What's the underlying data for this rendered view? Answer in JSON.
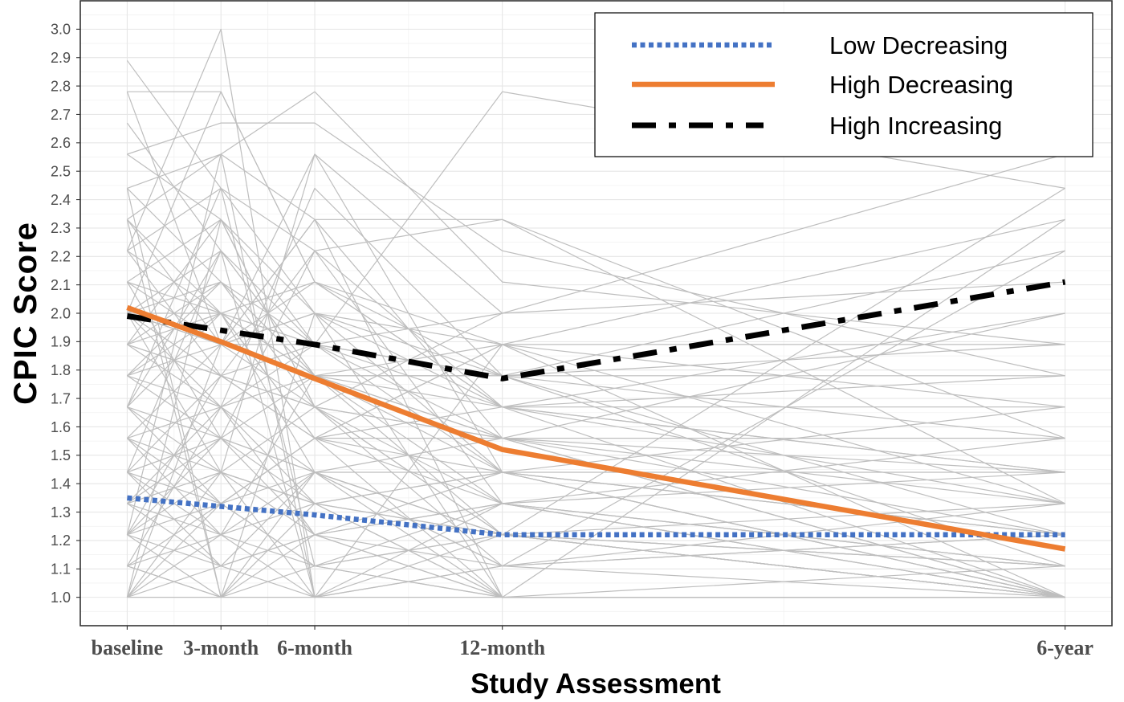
{
  "chart_data": {
    "type": "line",
    "xlabel": "Study Assessment",
    "ylabel": "CPIC Score",
    "x_ticks": [
      {
        "label": "baseline",
        "x": 0
      },
      {
        "label": "3-month",
        "x": 3
      },
      {
        "label": "6-month",
        "x": 6
      },
      {
        "label": "12-month",
        "x": 12
      },
      {
        "label": "6-year",
        "x": 30
      }
    ],
    "y_ticks": [
      "1.0",
      "1.1",
      "1.2",
      "1.3",
      "1.4",
      "1.5",
      "1.6",
      "1.7",
      "1.8",
      "1.9",
      "2.0",
      "2.1",
      "2.2",
      "2.3",
      "2.4",
      "2.5",
      "2.6",
      "2.7",
      "2.8",
      "2.9",
      "3.0"
    ],
    "xlim": [
      -1.5,
      31.5
    ],
    "ylim": [
      0.9,
      3.1
    ],
    "grid": true,
    "legend_position": "top-right",
    "x": [
      0,
      3,
      6,
      12,
      30
    ],
    "series": [
      {
        "name": "Low Decreasing",
        "color": "#4472C4",
        "values": [
          1.35,
          1.32,
          1.29,
          1.22,
          1.22
        ]
      },
      {
        "name": "High Decreasing",
        "color": "#ED7D31",
        "values": [
          2.02,
          1.9,
          1.77,
          1.52,
          1.17
        ]
      },
      {
        "name": "High Increasing",
        "color": "#000000",
        "values": [
          1.99,
          1.94,
          1.89,
          1.77,
          2.11
        ]
      }
    ],
    "individual_color": "#BEBEBE",
    "individuals": [
      [
        1.0,
        1.0,
        1.0,
        1.0,
        1.0
      ],
      [
        1.11,
        1.0,
        1.22,
        1.0,
        1.0
      ],
      [
        1.22,
        1.33,
        1.11,
        1.22,
        1.0
      ],
      [
        1.33,
        1.22,
        1.44,
        1.11,
        1.22
      ],
      [
        1.44,
        1.56,
        1.22,
        1.33,
        1.11
      ],
      [
        1.56,
        1.33,
        1.44,
        1.22,
        1.0
      ],
      [
        1.0,
        1.22,
        1.0,
        1.11,
        1.33
      ],
      [
        1.22,
        1.0,
        1.33,
        1.44,
        1.22
      ],
      [
        1.33,
        1.44,
        1.22,
        1.0,
        1.0
      ],
      [
        1.11,
        1.22,
        1.33,
        1.22,
        1.11
      ],
      [
        1.44,
        1.33,
        1.56,
        1.33,
        1.44
      ],
      [
        1.67,
        1.44,
        1.33,
        1.22,
        1.0
      ],
      [
        1.0,
        1.11,
        1.22,
        1.33,
        1.56
      ],
      [
        1.22,
        1.56,
        1.44,
        1.22,
        1.33
      ],
      [
        1.56,
        1.67,
        1.33,
        1.44,
        1.22
      ],
      [
        1.33,
        1.11,
        1.0,
        1.22,
        1.0
      ],
      [
        1.11,
        1.33,
        1.56,
        1.0,
        1.11
      ],
      [
        1.0,
        1.33,
        1.11,
        1.22,
        1.0
      ],
      [
        1.44,
        1.22,
        1.11,
        1.0,
        1.0
      ],
      [
        1.22,
        1.11,
        1.44,
        1.56,
        1.33
      ],
      [
        1.78,
        1.56,
        1.44,
        1.22,
        1.11
      ],
      [
        1.33,
        1.67,
        1.22,
        1.11,
        1.22
      ],
      [
        1.67,
        1.33,
        1.56,
        1.44,
        1.0
      ],
      [
        1.0,
        1.44,
        1.33,
        1.0,
        1.0
      ],
      [
        1.11,
        1.0,
        1.11,
        1.33,
        1.0
      ],
      [
        1.56,
        1.44,
        1.67,
        1.56,
        1.56
      ],
      [
        1.44,
        1.78,
        1.56,
        1.67,
        1.67
      ],
      [
        1.22,
        1.44,
        1.0,
        1.11,
        null
      ],
      [
        1.67,
        1.56,
        1.78,
        1.78,
        1.78
      ],
      [
        2.0,
        1.89,
        1.67,
        1.56,
        1.22
      ],
      [
        2.11,
        2.0,
        1.78,
        1.44,
        1.0
      ],
      [
        1.89,
        2.11,
        1.67,
        1.33,
        1.11
      ],
      [
        2.22,
        1.78,
        1.89,
        1.67,
        1.33
      ],
      [
        2.33,
        2.0,
        1.56,
        1.56,
        1.0
      ],
      [
        1.78,
        1.89,
        2.0,
        1.44,
        1.22
      ],
      [
        2.0,
        2.22,
        1.89,
        1.78,
        1.56
      ],
      [
        2.44,
        2.11,
        1.78,
        1.56,
        1.0
      ],
      [
        1.89,
        1.67,
        1.78,
        1.67,
        1.44
      ],
      [
        2.56,
        2.33,
        2.0,
        1.89,
        1.33
      ],
      [
        1.67,
        2.0,
        2.11,
        1.67,
        1.0
      ],
      [
        2.11,
        2.33,
        1.67,
        1.22,
        1.11
      ],
      [
        2.0,
        1.78,
        2.22,
        1.33,
        1.0
      ],
      [
        1.78,
        2.11,
        1.89,
        1.44,
        1.67
      ],
      [
        2.22,
        2.44,
        2.0,
        1.78,
        1.22
      ],
      [
        1.89,
        1.78,
        1.56,
        1.89,
        1.89
      ],
      [
        2.33,
        1.89,
        2.11,
        1.67,
        1.78
      ],
      [
        1.56,
        1.89,
        2.33,
        1.56,
        1.0
      ],
      [
        2.0,
        2.0,
        1.44,
        1.44,
        1.0
      ],
      [
        1.67,
        2.22,
        1.78,
        1.56,
        1.44
      ],
      [
        2.0,
        1.89,
        1.89,
        1.78,
        2.22
      ],
      [
        1.89,
        2.0,
        1.78,
        1.89,
        2.33
      ],
      [
        2.11,
        1.89,
        2.0,
        1.67,
        2.0
      ],
      [
        1.78,
        1.67,
        1.89,
        2.0,
        2.56
      ],
      [
        2.0,
        2.11,
        1.78,
        1.78,
        1.89
      ],
      [
        1.89,
        1.78,
        1.67,
        2.0,
        2.11
      ],
      [
        2.22,
        2.0,
        1.89,
        1.56,
        2.0
      ],
      [
        2.78,
        2.78,
        2.11,
        1.78,
        null
      ],
      [
        2.89,
        2.44,
        2.22,
        1.67,
        1.44
      ],
      [
        2.22,
        3.0,
        1.0,
        null,
        null
      ],
      [
        2.44,
        2.56,
        2.78,
        2.11,
        1.89
      ],
      [
        1.89,
        2.33,
        1.89,
        2.78,
        2.44
      ],
      [
        2.56,
        2.67,
        2.67,
        2.22,
        1.78
      ],
      [
        2.33,
        2.56,
        2.33,
        2.33,
        1.56
      ],
      [
        2.0,
        2.78,
        2.11,
        1.89,
        null
      ],
      [
        1.0,
        2.33,
        1.67,
        1.22,
        1.0
      ],
      [
        2.44,
        1.0,
        1.44,
        1.0,
        null
      ],
      [
        1.22,
        2.56,
        1.0,
        1.33,
        1.11
      ],
      [
        2.78,
        1.89,
        2.56,
        1.44,
        1.0
      ],
      [
        2.33,
        1.0,
        2.0,
        1.0,
        1.0
      ],
      [
        1.44,
        2.22,
        1.0,
        1.89,
        1.67
      ],
      [
        1.0,
        1.89,
        2.33,
        1.0,
        1.0
      ],
      [
        2.0,
        1.44,
        2.56,
        2.0,
        null
      ],
      [
        1.67,
        2.44,
        1.11,
        1.0,
        1.0
      ],
      [
        1.33,
        1.56,
        1.33,
        1.0,
        2.33
      ],
      [
        1.56,
        1.22,
        1.78,
        1.22,
        2.44
      ],
      [
        1.11,
        1.67,
        1.44,
        1.11,
        2.22
      ],
      [
        2.11,
        1.56,
        2.22,
        2.33,
        1.33
      ],
      [
        1.44,
        1.11,
        1.22,
        1.44,
        1.44
      ],
      [
        1.78,
        2.0,
        1.56,
        1.89,
        1.0
      ],
      [
        2.67,
        2.22,
        1.78,
        1.33,
        1.0
      ],
      [
        1.22,
        1.78,
        1.67,
        1.11,
        1.0
      ],
      [
        2.0,
        1.67,
        2.44,
        1.78,
        1.11
      ]
    ]
  }
}
